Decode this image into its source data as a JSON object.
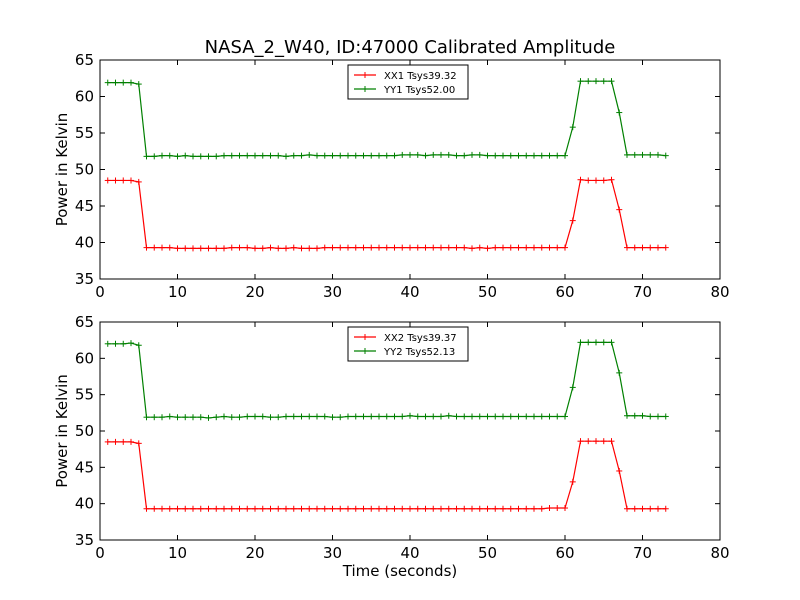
{
  "title": "NASA_2_W40, ID:47000 Calibrated Amplitude",
  "colors": {
    "red": "#ff0000",
    "green": "#008000"
  },
  "chart_data": [
    {
      "type": "line",
      "ylabel": "Power in Kelvin",
      "xlabel": "",
      "xlim": [
        0,
        80
      ],
      "ylim": [
        35,
        65
      ],
      "xticks": [
        0,
        10,
        20,
        30,
        40,
        50,
        60,
        70,
        80
      ],
      "yticks": [
        35,
        40,
        45,
        50,
        55,
        60,
        65
      ],
      "legend_placement": "top-center",
      "x": [
        1,
        2,
        3,
        4,
        5,
        6,
        7,
        8,
        9,
        10,
        11,
        12,
        13,
        14,
        15,
        16,
        17,
        18,
        19,
        20,
        21,
        22,
        23,
        24,
        25,
        26,
        27,
        28,
        29,
        30,
        31,
        32,
        33,
        34,
        35,
        36,
        37,
        38,
        39,
        40,
        41,
        42,
        43,
        44,
        45,
        46,
        47,
        48,
        49,
        50,
        51,
        52,
        53,
        54,
        55,
        56,
        57,
        58,
        59,
        60,
        61,
        62,
        63,
        64,
        65,
        66,
        67,
        68,
        69,
        70,
        71,
        72,
        73
      ],
      "series": [
        {
          "name": "XX1 Tsys39.32",
          "color": "#ff0000",
          "values": [
            48.5,
            48.5,
            48.5,
            48.5,
            48.3,
            39.3,
            39.3,
            39.3,
            39.3,
            39.2,
            39.2,
            39.2,
            39.2,
            39.2,
            39.2,
            39.2,
            39.3,
            39.3,
            39.3,
            39.2,
            39.2,
            39.3,
            39.2,
            39.2,
            39.3,
            39.2,
            39.2,
            39.2,
            39.3,
            39.3,
            39.3,
            39.3,
            39.3,
            39.3,
            39.3,
            39.3,
            39.3,
            39.3,
            39.3,
            39.3,
            39.3,
            39.3,
            39.3,
            39.3,
            39.3,
            39.3,
            39.3,
            39.2,
            39.3,
            39.2,
            39.3,
            39.3,
            39.3,
            39.3,
            39.3,
            39.3,
            39.3,
            39.3,
            39.3,
            39.3,
            43.0,
            48.6,
            48.5,
            48.5,
            48.5,
            48.6,
            44.5,
            39.3,
            39.3,
            39.3,
            39.3,
            39.3,
            39.3
          ]
        },
        {
          "name": "YY1 Tsys52.00",
          "color": "#008000",
          "values": [
            61.9,
            61.9,
            61.9,
            61.9,
            61.7,
            51.8,
            51.8,
            51.9,
            51.9,
            51.8,
            51.9,
            51.8,
            51.8,
            51.8,
            51.8,
            51.9,
            51.9,
            51.9,
            51.9,
            51.9,
            51.9,
            51.9,
            51.9,
            51.8,
            51.9,
            51.9,
            52.0,
            51.9,
            51.9,
            51.9,
            51.9,
            51.9,
            51.9,
            51.9,
            51.9,
            51.9,
            51.9,
            51.9,
            52.0,
            52.0,
            52.0,
            51.9,
            52.0,
            52.0,
            52.0,
            51.9,
            51.9,
            52.0,
            52.0,
            51.9,
            51.9,
            51.9,
            51.9,
            51.9,
            51.9,
            51.9,
            51.9,
            51.9,
            51.9,
            51.9,
            55.8,
            62.1,
            62.1,
            62.1,
            62.1,
            62.1,
            57.8,
            52.0,
            52.0,
            52.0,
            52.0,
            52.0,
            51.9
          ]
        }
      ]
    },
    {
      "type": "line",
      "ylabel": "Power in Kelvin",
      "xlabel": "Time (seconds)",
      "xlim": [
        0,
        80
      ],
      "ylim": [
        35,
        65
      ],
      "xticks": [
        0,
        10,
        20,
        30,
        40,
        50,
        60,
        70,
        80
      ],
      "yticks": [
        35,
        40,
        45,
        50,
        55,
        60,
        65
      ],
      "legend_placement": "top-center",
      "x": [
        1,
        2,
        3,
        4,
        5,
        6,
        7,
        8,
        9,
        10,
        11,
        12,
        13,
        14,
        15,
        16,
        17,
        18,
        19,
        20,
        21,
        22,
        23,
        24,
        25,
        26,
        27,
        28,
        29,
        30,
        31,
        32,
        33,
        34,
        35,
        36,
        37,
        38,
        39,
        40,
        41,
        42,
        43,
        44,
        45,
        46,
        47,
        48,
        49,
        50,
        51,
        52,
        53,
        54,
        55,
        56,
        57,
        58,
        59,
        60,
        61,
        62,
        63,
        64,
        65,
        66,
        67,
        68,
        69,
        70,
        71,
        72,
        73
      ],
      "series": [
        {
          "name": "XX2 Tsys39.37",
          "color": "#ff0000",
          "values": [
            48.5,
            48.5,
            48.5,
            48.5,
            48.3,
            39.3,
            39.3,
            39.3,
            39.3,
            39.3,
            39.3,
            39.3,
            39.3,
            39.3,
            39.3,
            39.3,
            39.3,
            39.3,
            39.3,
            39.3,
            39.3,
            39.3,
            39.3,
            39.3,
            39.3,
            39.3,
            39.3,
            39.3,
            39.3,
            39.3,
            39.3,
            39.3,
            39.3,
            39.3,
            39.3,
            39.3,
            39.3,
            39.3,
            39.3,
            39.3,
            39.3,
            39.3,
            39.3,
            39.3,
            39.3,
            39.3,
            39.3,
            39.3,
            39.3,
            39.3,
            39.3,
            39.3,
            39.3,
            39.3,
            39.3,
            39.3,
            39.3,
            39.4,
            39.4,
            39.4,
            43.0,
            48.6,
            48.6,
            48.6,
            48.6,
            48.6,
            44.5,
            39.3,
            39.3,
            39.3,
            39.3,
            39.3,
            39.3
          ]
        },
        {
          "name": "YY2 Tsys52.13",
          "color": "#008000",
          "values": [
            62.0,
            62.0,
            62.0,
            62.1,
            61.8,
            51.9,
            51.9,
            51.9,
            52.0,
            51.9,
            51.9,
            51.9,
            51.9,
            51.8,
            51.9,
            52.0,
            51.9,
            51.9,
            52.0,
            52.0,
            52.0,
            51.9,
            51.9,
            52.0,
            52.0,
            52.0,
            52.0,
            52.0,
            52.0,
            51.9,
            51.9,
            52.0,
            52.0,
            52.0,
            52.0,
            52.0,
            52.0,
            52.0,
            52.0,
            52.1,
            52.0,
            52.0,
            52.0,
            52.0,
            52.1,
            52.0,
            52.0,
            52.0,
            52.0,
            52.0,
            52.0,
            52.0,
            52.0,
            52.0,
            52.0,
            52.0,
            52.0,
            52.0,
            52.0,
            52.0,
            56.0,
            62.2,
            62.2,
            62.2,
            62.2,
            62.2,
            58.0,
            52.1,
            52.1,
            52.1,
            52.0,
            52.0,
            52.0
          ]
        }
      ]
    }
  ]
}
